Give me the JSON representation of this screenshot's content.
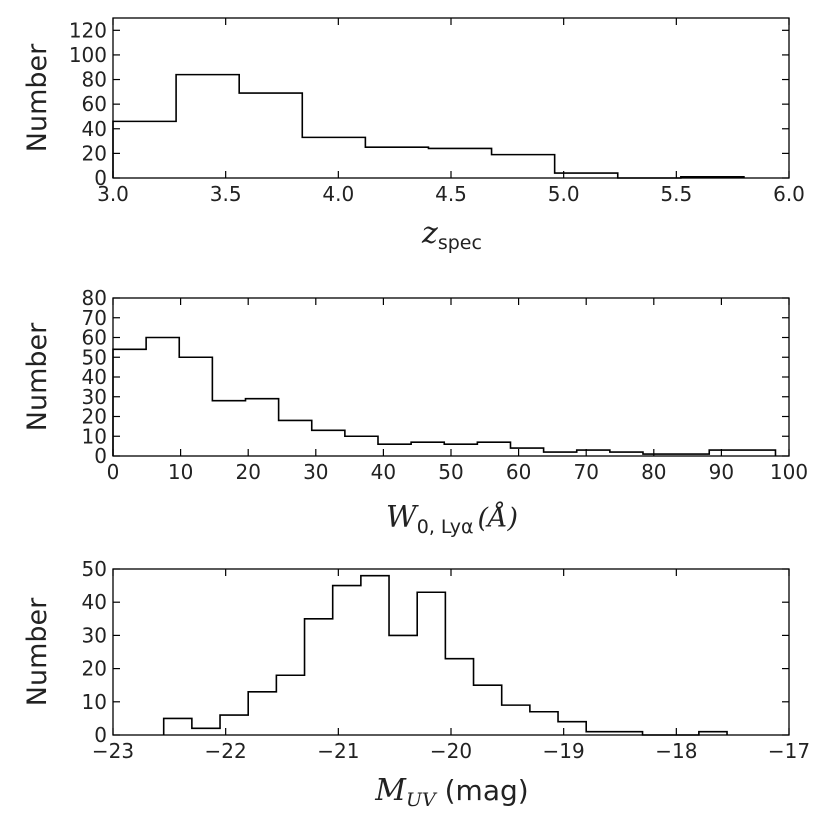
{
  "chart_data": [
    {
      "type": "histogram",
      "id": "zspec",
      "xlabel": {
        "main": "z",
        "sub": "spec"
      },
      "ylabel": "Number",
      "xlim": [
        3.0,
        6.0
      ],
      "ylim": [
        0,
        130
      ],
      "xticks": [
        3.0,
        3.5,
        4.0,
        4.5,
        5.0,
        5.5,
        6.0
      ],
      "xtick_labels": [
        "3.0",
        "3.5",
        "4.0",
        "4.5",
        "5.0",
        "5.5",
        "6.0"
      ],
      "yticks": [
        0,
        20,
        40,
        60,
        80,
        100,
        120
      ],
      "ytick_labels": [
        "0",
        "20",
        "40",
        "60",
        "80",
        "100",
        "120"
      ],
      "bin_edges": [
        3.0,
        3.28,
        3.56,
        3.84,
        4.12,
        4.4,
        4.68,
        4.96,
        5.24,
        5.52,
        5.8
      ],
      "counts": [
        46,
        84,
        69,
        33,
        25,
        24,
        19,
        4,
        0,
        1
      ]
    },
    {
      "type": "histogram",
      "id": "ew-lya",
      "xlabel": {
        "main": "W",
        "sub": "0, Lyα",
        "unit": "(Å)"
      },
      "ylabel": "Number",
      "xlim": [
        0,
        100
      ],
      "ylim": [
        0,
        80
      ],
      "xticks": [
        0,
        10,
        20,
        30,
        40,
        50,
        60,
        70,
        80,
        90,
        100
      ],
      "xtick_labels": [
        "0",
        "10",
        "20",
        "30",
        "40",
        "50",
        "60",
        "70",
        "80",
        "90",
        "100"
      ],
      "yticks": [
        0,
        10,
        20,
        30,
        40,
        50,
        60,
        70,
        80
      ],
      "ytick_labels": [
        "0",
        "10",
        "20",
        "30",
        "40",
        "50",
        "60",
        "70",
        "80"
      ],
      "bin_edges": [
        0,
        4.9,
        9.8,
        14.7,
        19.6,
        24.5,
        29.4,
        34.3,
        39.2,
        44.1,
        49.0,
        53.9,
        58.8,
        63.7,
        68.6,
        73.5,
        78.4,
        83.3,
        88.2,
        93.1,
        98.0
      ],
      "counts": [
        54,
        60,
        50,
        28,
        29,
        18,
        13,
        10,
        6,
        7,
        6,
        7,
        4,
        2,
        3,
        2,
        1,
        1,
        3,
        3
      ]
    },
    {
      "type": "histogram",
      "id": "muv",
      "xlabel": {
        "main": "M",
        "sub": "UV",
        "unit": " (mag)"
      },
      "ylabel": "Number",
      "xlim": [
        -23,
        -17
      ],
      "ylim": [
        0,
        50
      ],
      "xticks": [
        -23,
        -22,
        -21,
        -20,
        -19,
        -18,
        -17
      ],
      "xtick_labels": [
        "−23",
        "−22",
        "−21",
        "−20",
        "−19",
        "−18",
        "−17"
      ],
      "yticks": [
        0,
        10,
        20,
        30,
        40,
        50
      ],
      "ytick_labels": [
        "0",
        "10",
        "20",
        "30",
        "40",
        "50"
      ],
      "bin_edges": [
        -22.55,
        -22.3,
        -22.05,
        -21.8,
        -21.55,
        -21.3,
        -21.05,
        -20.8,
        -20.55,
        -20.3,
        -20.05,
        -19.8,
        -19.55,
        -19.3,
        -19.05,
        -18.8,
        -18.55,
        -18.3,
        -18.05,
        -17.8,
        -17.55
      ],
      "counts": [
        5,
        2,
        6,
        13,
        18,
        35,
        45,
        48,
        30,
        43,
        23,
        15,
        9,
        7,
        4,
        1,
        1,
        0,
        0,
        1
      ]
    }
  ]
}
